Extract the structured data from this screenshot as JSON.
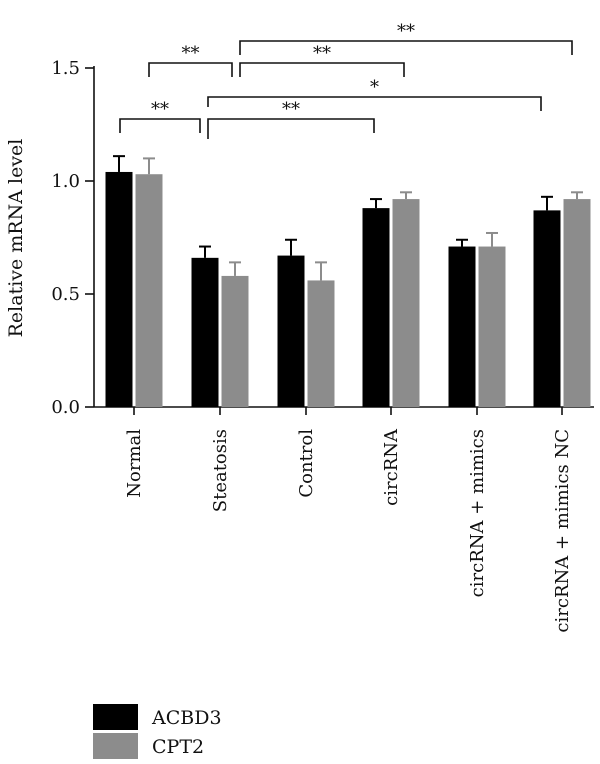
{
  "chart_data": {
    "type": "bar",
    "ylabel": "Relative mRNA level",
    "xlabel": "",
    "ylim": [
      0,
      1.5
    ],
    "yticks": [
      0.0,
      0.5,
      1.0,
      1.5
    ],
    "ytick_labels": [
      "0.0",
      "0.5",
      "1.0",
      "1.5"
    ],
    "categories": [
      "Normal",
      "Steatosis",
      "Control",
      "circRNA",
      "circRNA + mimics",
      "circRNA + mimics NC"
    ],
    "series": [
      {
        "name": "ACBD3",
        "color": "#000000",
        "values": [
          1.04,
          0.66,
          0.67,
          0.88,
          0.71,
          0.87
        ],
        "errors": [
          0.07,
          0.05,
          0.07,
          0.04,
          0.03,
          0.06
        ]
      },
      {
        "name": "CPT2",
        "color": "#8c8c8c",
        "values": [
          1.03,
          0.58,
          0.56,
          0.92,
          0.71,
          0.92
        ],
        "errors": [
          0.07,
          0.06,
          0.08,
          0.03,
          0.06,
          0.03
        ]
      }
    ],
    "significance": [
      {
        "from": 0,
        "to": 1,
        "label": "**"
      },
      {
        "from": 1,
        "to": 3,
        "label": "**"
      },
      {
        "from": 1,
        "to": 5,
        "label": "*"
      },
      {
        "from": 0,
        "to": 1,
        "label": "**"
      },
      {
        "from": 1,
        "to": 3,
        "label": "**"
      },
      {
        "from": 1,
        "to": 5,
        "label": "**"
      }
    ],
    "legend": {
      "position": "bottom-left",
      "entries": [
        "ACBD3",
        "CPT2"
      ]
    },
    "grid": false
  }
}
